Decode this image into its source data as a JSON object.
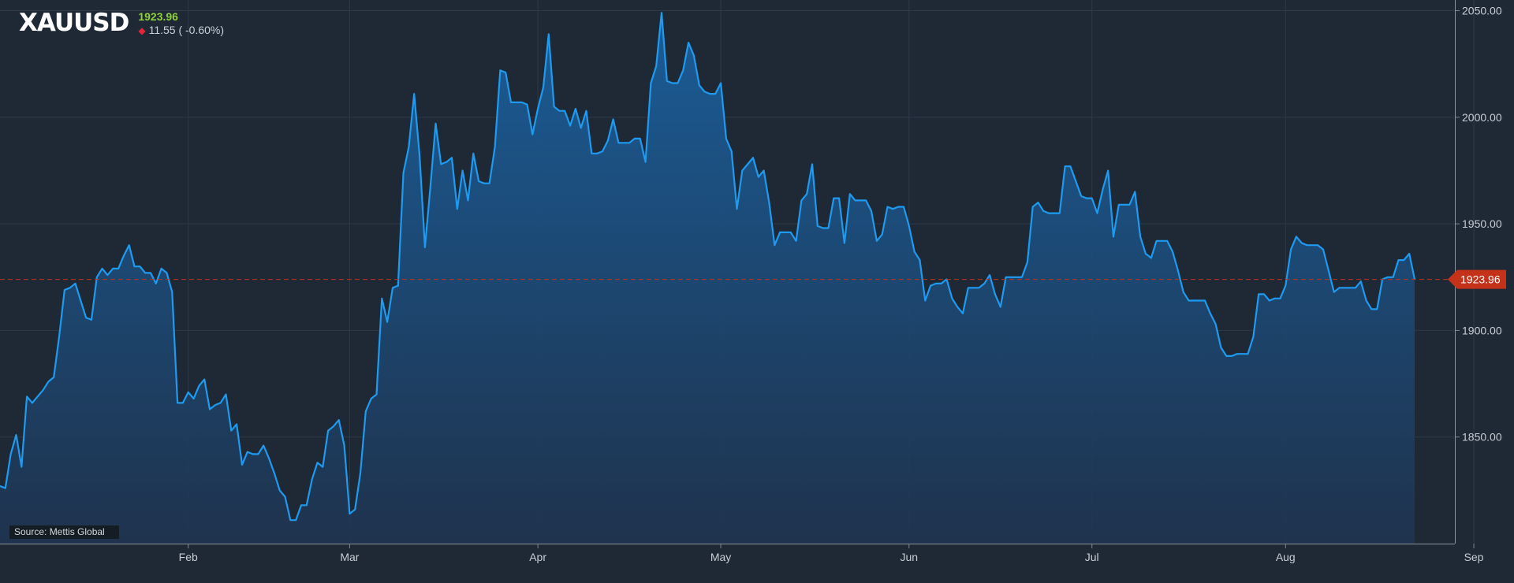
{
  "header": {
    "symbol": "XAUUSD",
    "last_price": "1923.96",
    "change_text": "11.55 ( -0.60%)"
  },
  "source_label": "Source: Mettis Global",
  "colors": {
    "background": "#1e2935",
    "line": "#1e9bf0",
    "price_tag": "#c4321a",
    "up": "#8fd13a",
    "down": "#e2263a"
  },
  "chart_data": {
    "type": "area",
    "title": "",
    "ylim": [
      1800,
      2055
    ],
    "y_ticks": [
      {
        "value": 1850,
        "label": "1850.00"
      },
      {
        "value": 1900,
        "label": "1900.00"
      },
      {
        "value": 1950,
        "label": "1950.00"
      },
      {
        "value": 2000,
        "label": "2000.00"
      },
      {
        "value": 2050,
        "label": "2050.00"
      }
    ],
    "x_ticks": [
      {
        "index": 35,
        "label": "Feb"
      },
      {
        "index": 65,
        "label": "Mar"
      },
      {
        "index": 100,
        "label": "Apr"
      },
      {
        "index": 134,
        "label": "May"
      },
      {
        "index": 169,
        "label": "Jun"
      },
      {
        "index": 203,
        "label": "Jul"
      },
      {
        "index": 239,
        "label": "Aug"
      },
      {
        "index": 274,
        "label": "Sep"
      }
    ],
    "current_price": {
      "value": 1923.96,
      "label": "1923.96"
    },
    "grid": true,
    "series": [
      {
        "values": [
          1827,
          1826,
          1842,
          1851,
          1836,
          1869,
          1866,
          1869,
          1872,
          1876,
          1878,
          1897,
          1919,
          1920,
          1922,
          1914,
          1906,
          1905,
          1925,
          1929,
          1926,
          1929,
          1929,
          1935,
          1940,
          1930,
          1930,
          1927,
          1927,
          1922,
          1929,
          1927,
          1918,
          1866,
          1866,
          1871,
          1868,
          1874,
          1877,
          1863,
          1865,
          1866,
          1870,
          1853,
          1856,
          1837,
          1843,
          1842,
          1842,
          1846,
          1840,
          1833,
          1825,
          1822,
          1811,
          1811,
          1818,
          1818,
          1830,
          1838,
          1836,
          1853,
          1855,
          1858,
          1846,
          1814,
          1816,
          1833,
          1862,
          1868,
          1870,
          1915,
          1904,
          1920,
          1921,
          1974,
          1986,
          2011,
          1982,
          1939,
          1967,
          1997,
          1978,
          1979,
          1981,
          1957,
          1975,
          1961,
          1983,
          1970,
          1969,
          1969,
          1986,
          2022,
          2021,
          2007,
          2007,
          2007,
          2006,
          1992,
          2004,
          2014,
          2039,
          2005,
          2003,
          2003,
          1996,
          2004,
          1995,
          2003,
          1983,
          1983,
          1984,
          1989,
          1999,
          1988,
          1988,
          1988,
          1990,
          1990,
          1979,
          2016,
          2024,
          2049,
          2017,
          2016,
          2016,
          2022,
          2035,
          2029,
          2015,
          2012,
          2011,
          2011,
          2016,
          1990,
          1984,
          1957,
          1975,
          1978,
          1981,
          1972,
          1975,
          1960,
          1940,
          1946,
          1946,
          1946,
          1942,
          1961,
          1964,
          1978,
          1949,
          1948,
          1948,
          1962,
          1962,
          1941,
          1964,
          1961,
          1961,
          1961,
          1956,
          1942,
          1945,
          1958,
          1957,
          1958,
          1958,
          1949,
          1937,
          1933,
          1914,
          1921,
          1922,
          1922,
          1924,
          1915,
          1911,
          1908,
          1920,
          1920,
          1920,
          1922,
          1926,
          1917,
          1911,
          1925,
          1925,
          1925,
          1925,
          1932,
          1958,
          1960,
          1956,
          1955,
          1955,
          1955,
          1977,
          1977,
          1970,
          1963,
          1962,
          1962,
          1955,
          1966,
          1975,
          1944,
          1959,
          1959,
          1959,
          1965,
          1944,
          1936,
          1934,
          1942,
          1942,
          1942,
          1937,
          1928,
          1918,
          1914,
          1914,
          1914,
          1914,
          1908,
          1903,
          1892,
          1888,
          1888,
          1889,
          1889,
          1889,
          1897,
          1917,
          1917,
          1914,
          1915,
          1915,
          1921,
          1938,
          1944,
          1941,
          1940,
          1940,
          1940,
          1938,
          1928,
          1918,
          1920,
          1920,
          1920,
          1920,
          1923,
          1914,
          1910,
          1910,
          1924,
          1925,
          1925,
          1933,
          1933,
          1936,
          1924
        ]
      }
    ]
  }
}
